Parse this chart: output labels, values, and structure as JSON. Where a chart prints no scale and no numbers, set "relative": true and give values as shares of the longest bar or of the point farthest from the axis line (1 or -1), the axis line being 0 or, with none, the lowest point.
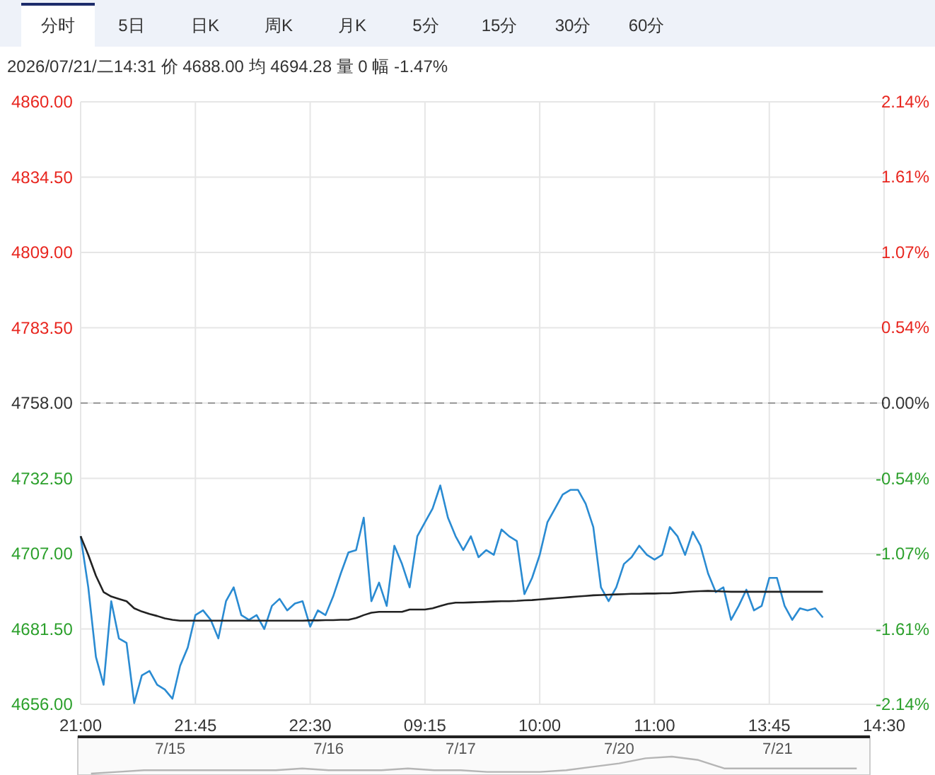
{
  "chart_data": [
    {
      "type": "line",
      "annotations": [
        "分时",
        "5日",
        "日K",
        "周K",
        "月K",
        "5分",
        "15分",
        "30分",
        "60分"
      ],
      "subtitle": "2026/07/21/二14:31  价 4688.00  均 4694.28  量 0  幅 -1.47%",
      "categories": [
        "21:00",
        null,
        null,
        null,
        null,
        null,
        null,
        null,
        null,
        null,
        null,
        null,
        null,
        null,
        null,
        "21:45",
        null,
        null,
        null,
        null,
        null,
        null,
        null,
        null,
        null,
        null,
        null,
        null,
        null,
        null,
        "22:30",
        null,
        null,
        null,
        null,
        null,
        null,
        null,
        null,
        null,
        null,
        null,
        null,
        null,
        null,
        "09:15",
        null,
        null,
        null,
        null,
        null,
        null,
        null,
        null,
        null,
        null,
        null,
        null,
        null,
        null,
        "10:00",
        null,
        null,
        null,
        null,
        null,
        null,
        null,
        null,
        null,
        null,
        null,
        null,
        null,
        null,
        "11:00",
        null,
        null,
        null,
        null,
        null,
        null,
        null,
        null,
        null,
        null,
        null,
        null,
        null,
        null,
        "13:45",
        null,
        null,
        null,
        null,
        null,
        null,
        null,
        null,
        null,
        null,
        null,
        null,
        null,
        null,
        "14:30"
      ],
      "series": [
        {
          "color": "#2a8bd2",
          "values": [
            4712.9,
            4695.6,
            4672,
            4662.6,
            4690.9,
            4678.3,
            4676.8,
            4656.4,
            4665.8,
            4667.3,
            4662.6,
            4661,
            4657.9,
            4669,
            4675.2,
            4686.2,
            4687.8,
            4684.6,
            4678.3,
            4690.9,
            4695.6,
            4686.2,
            4684.6,
            4686.2,
            4681.5,
            4689.3,
            4691.7,
            4687.8,
            4690.1,
            4690.9,
            4682.3,
            4687.8,
            4686.2,
            4692.5,
            4700.3,
            4707.4,
            4708.2,
            4719.2,
            4690.9,
            4697.2,
            4689.3,
            4709.7,
            4703.5,
            4695.6,
            4712.9,
            4717.6,
            4722.3,
            4730.1,
            4719.2,
            4712.9,
            4708.2,
            4712.9,
            4705.8,
            4708.2,
            4706.6,
            4715.2,
            4712.9,
            4711.3,
            4693.3,
            4698.8,
            4706.6,
            4717.6,
            4722.3,
            4727,
            4728.6,
            4728.6,
            4723.9,
            4716,
            4695.6,
            4690.9,
            4695.6,
            4703.5,
            4705.8,
            4709.7,
            4706.6,
            4705,
            4706.6,
            4716,
            4712.9,
            4706.6,
            4714.4,
            4709.7,
            4700.3,
            4694,
            4695.6,
            4684.6,
            4689.3,
            4694.8,
            4687.8,
            4689.3,
            4698.8,
            4698.8,
            4689.3,
            4684.6,
            4688.5,
            4687.8,
            4688.5,
            4685.4,
            null,
            null,
            null,
            null,
            null,
            null,
            null,
            null
          ]
        },
        {
          "color": "#222222",
          "values": [
            4712.9,
            4706.6,
            4699.5,
            4694,
            4692.5,
            4691.7,
            4690.9,
            4688.5,
            4687.4,
            4686.6,
            4685.9,
            4685.1,
            4684.6,
            4684.3,
            4684.3,
            4684.3,
            4684.3,
            4684.3,
            4684.3,
            4684.3,
            4684.3,
            4684.3,
            4684.3,
            4684.3,
            4684.3,
            4684.3,
            4684.3,
            4684.3,
            4684.3,
            4684.3,
            4684.4,
            4684.4,
            4684.5,
            4684.5,
            4684.6,
            4684.6,
            4685.2,
            4686.2,
            4687,
            4687.3,
            4687.3,
            4687.3,
            4687.3,
            4688.1,
            4688.1,
            4688.1,
            4688.5,
            4689.3,
            4690,
            4690.4,
            4690.4,
            4690.5,
            4690.6,
            4690.7,
            4690.8,
            4690.9,
            4690.9,
            4691,
            4691.2,
            4691.3,
            4691.5,
            4691.7,
            4691.9,
            4692.1,
            4692.3,
            4692.5,
            4692.7,
            4692.9,
            4693,
            4693.1,
            4693.2,
            4693.3,
            4693.4,
            4693.4,
            4693.5,
            4693.5,
            4693.6,
            4693.6,
            4693.8,
            4694,
            4694.2,
            4694.3,
            4694.4,
            4694.3,
            4694.2,
            4694.1,
            4694.1,
            4694.1,
            4694.1,
            4694.1,
            4694.1,
            4694.1,
            4694.1,
            4694.1,
            4694.1,
            4694.1,
            4694.1,
            4694.1,
            null,
            null,
            null,
            null,
            null,
            null,
            null,
            null
          ]
        }
      ],
      "ylim": [
        4656,
        4860
      ],
      "yticks": [
        {
          "value": 4656,
          "label": "4656.00"
        },
        {
          "value": 4681.5,
          "label": "4681.50"
        },
        {
          "value": 4707,
          "label": "4707.00"
        },
        {
          "value": 4732.5,
          "label": "4732.50"
        },
        {
          "value": 4758,
          "label": "4758.00"
        },
        {
          "value": 4783.5,
          "label": "4783.50"
        },
        {
          "value": 4809,
          "label": "4809.00"
        },
        {
          "value": 4834.5,
          "label": "4834.50"
        },
        {
          "value": 4860,
          "label": "4860.00"
        }
      ],
      "y2lim": [
        -2.14,
        2.14
      ],
      "y2ticks": [
        {
          "value": -2.14,
          "label": "-2.14%"
        },
        {
          "value": -1.61,
          "label": "-1.61%"
        },
        {
          "value": -1.07,
          "label": "-1.07%"
        },
        {
          "value": -0.54,
          "label": "-0.54%"
        },
        {
          "value": 0,
          "label": "0.00%"
        },
        {
          "value": 0.54,
          "label": "0.54%"
        },
        {
          "value": 1.07,
          "label": "1.07%"
        },
        {
          "value": 1.61,
          "label": "1.61%"
        },
        {
          "value": 2.14,
          "label": "2.14%"
        }
      ],
      "ref_lines": [
        {
          "axis": "y",
          "value": 4758,
          "color": "#999999",
          "line_style": "dashed"
        }
      ],
      "grid": true
    },
    {
      "type": "line",
      "relative": true,
      "color": "#b5b5b5",
      "categories": [
        null,
        null,
        null,
        "7/15",
        null,
        null,
        null,
        null,
        null,
        "7/16",
        null,
        null,
        null,
        null,
        "7/17",
        null,
        null,
        null,
        null,
        null,
        "7/20",
        null,
        null,
        null,
        null,
        null,
        "7/21",
        null,
        null,
        null
      ],
      "values": [
        0,
        0.1,
        0.2,
        0.2,
        0.2,
        0.2,
        0.2,
        0.2,
        0.3,
        0.2,
        0.2,
        0.2,
        0.3,
        0.2,
        0.2,
        0.1,
        0.1,
        0.1,
        0.2,
        0.4,
        0.6,
        0.9,
        1,
        0.8,
        0.3,
        0.3,
        0.3,
        0.3,
        0.3,
        0.3
      ]
    }
  ]
}
